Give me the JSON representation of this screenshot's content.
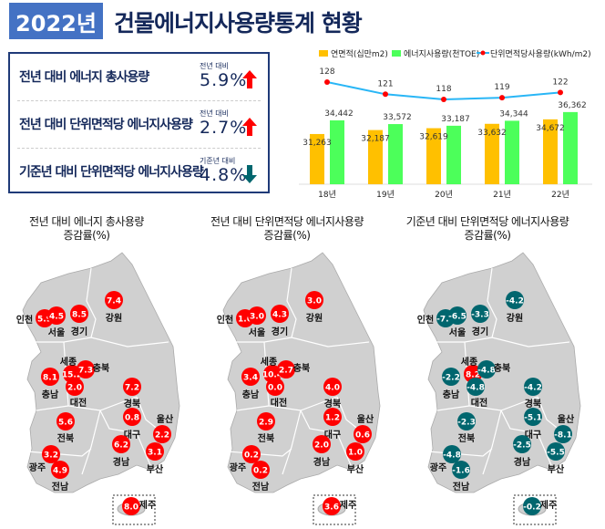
{
  "header": {
    "year": "2022년",
    "title": "건물에너지사용량통계 현황"
  },
  "summary": [
    {
      "label": "전년 대비 에너지 총사용량",
      "caption": "전년 대비",
      "value": "5.9%",
      "direction": "up"
    },
    {
      "label": "전년 대비 단위면적당 에너지사용량",
      "caption": "전년 대비",
      "value": "2.7%",
      "direction": "up"
    },
    {
      "label": "기준년 대비 단위면적당 에너지사용량",
      "caption": "기준년 대비",
      "value": "4.8%",
      "direction": "down"
    }
  ],
  "colors": {
    "up": "#ff0000",
    "down": "#00666e",
    "area": "#ffc000",
    "energy": "#4cff5a",
    "line": "#29b6f6",
    "marker": "#ff0000",
    "map": "#d0d0d0"
  },
  "chart_data": {
    "type": "bar+line",
    "categories": [
      "18년",
      "19년",
      "20년",
      "21년",
      "22년"
    ],
    "series": [
      {
        "name": "연면적(십만m2)",
        "type": "bar",
        "values": [
          31263,
          32187,
          32619,
          33632,
          34672
        ],
        "labels": [
          "31,263",
          "32,187",
          "32,619",
          "33,632",
          "34,672"
        ]
      },
      {
        "name": "에너지사용량(천TOE)",
        "type": "bar",
        "values": [
          34442,
          33572,
          33187,
          34344,
          36362
        ],
        "labels": [
          "34,442",
          "33,572",
          "33,187",
          "34,344",
          "36,362"
        ]
      },
      {
        "name": "단위면적당사용량(kWh/m2)",
        "type": "line",
        "values": [
          128,
          121,
          118,
          119,
          122
        ]
      }
    ],
    "legend": "top"
  },
  "regions": [
    "인천",
    "서울",
    "경기",
    "강원",
    "세종",
    "충북",
    "충남",
    "대전",
    "경북",
    "대구",
    "울산",
    "전북",
    "경남",
    "부산",
    "광주",
    "전남",
    "제주"
  ],
  "maps": [
    {
      "title": [
        "전년 대비 에너지 총사용량",
        "증감률(%)"
      ],
      "values": [
        "5.9",
        "4.5",
        "8.5",
        "7.4",
        "15.2",
        "7.3",
        "8.1",
        "2.0",
        "7.2",
        "0.8",
        "2.2",
        "5.6",
        "6.2",
        "3.1",
        "3.2",
        "4.9",
        "8.0"
      ]
    },
    {
      "title": [
        "전년 대비 단위면적당 에너지사용량",
        "증감률(%)"
      ],
      "values": [
        "1.6",
        "3.0",
        "4.3",
        "3.0",
        "10.4",
        "2.7",
        "3.4",
        "0.0",
        "4.0",
        "1.2",
        "0.6",
        "2.9",
        "2.0",
        "1.0",
        "0.2",
        "0.2",
        "3.6"
      ]
    },
    {
      "title": [
        "기준년 대비 단위면적당 에너지사용량",
        "증감률(%)"
      ],
      "values": [
        "-7.6",
        "-6.5",
        "-3.3",
        "-4.2",
        "8.2",
        "-4.8",
        "-2.2",
        "-4.8",
        "-4.2",
        "-5.1",
        "-8.1",
        "-2.3",
        "-2.5",
        "-5.5",
        "-4.8",
        "-1.6",
        "-0.2"
      ]
    }
  ]
}
